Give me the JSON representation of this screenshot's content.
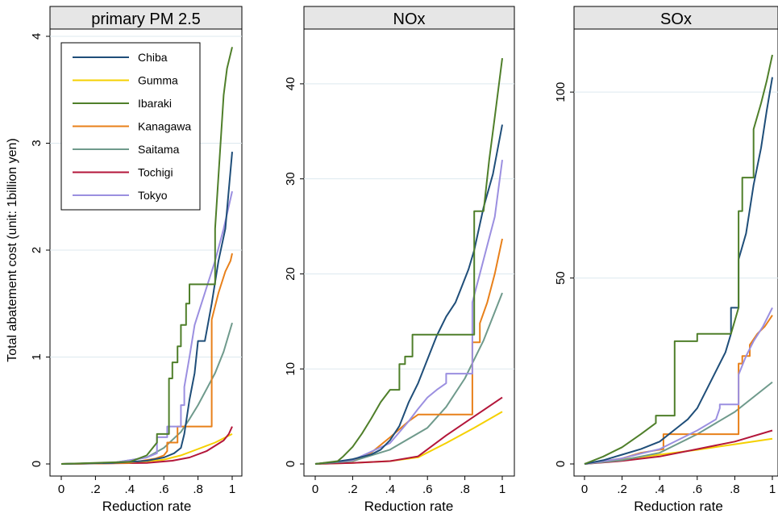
{
  "ylabel": "Total abatement cost (unit: 1billion yen)",
  "legend": {
    "placement": "top-left of first panel",
    "entries": [
      "Chiba",
      "Gumma",
      "Ibaraki",
      "Kanagawa",
      "Saitama",
      "Tochigi",
      "Tokyo"
    ]
  },
  "colors": {
    "Chiba": "#1f4e79",
    "Gumma": "#f5d000",
    "Ibaraki": "#4f7f2a",
    "Kanagawa": "#e8801a",
    "Saitama": "#6f9a8c",
    "Tochigi": "#b3163a",
    "Tokyo": "#9b8fe0",
    "panel_header": "#e6e6e6",
    "grid": "#dde9ef"
  },
  "chart_data": [
    {
      "type": "line",
      "title": "primary PM 2.5",
      "xlabel": "Reduction rate",
      "ylabel": "Total abatement cost (unit: 1billion yen)",
      "xlim": [
        0,
        1
      ],
      "ylim": [
        0,
        4
      ],
      "xticks": [
        "0",
        ".2",
        ".4",
        ".6",
        ".8",
        "1"
      ],
      "yticks": [
        "0",
        "1",
        "2",
        "3",
        "4"
      ],
      "series": [
        {
          "name": "Chiba",
          "x": [
            0,
            0.3,
            0.5,
            0.6,
            0.66,
            0.7,
            0.72,
            0.75,
            0.78,
            0.8,
            0.84,
            0.88,
            0.92,
            0.96,
            1.0
          ],
          "y": [
            0,
            0.01,
            0.03,
            0.06,
            0.1,
            0.15,
            0.28,
            0.6,
            0.85,
            1.15,
            1.15,
            1.5,
            1.9,
            2.2,
            2.92
          ]
        },
        {
          "name": "Gumma",
          "x": [
            0,
            0.4,
            0.6,
            0.7,
            0.8,
            0.9,
            1.0
          ],
          "y": [
            0,
            0.01,
            0.04,
            0.08,
            0.14,
            0.2,
            0.28
          ]
        },
        {
          "name": "Ibaraki",
          "x": [
            0,
            0.4,
            0.5,
            0.52,
            0.56,
            0.56,
            0.63,
            0.63,
            0.65,
            0.65,
            0.68,
            0.68,
            0.7,
            0.7,
            0.73,
            0.73,
            0.75,
            0.75,
            0.9,
            0.9,
            0.95,
            0.97,
            1.0
          ],
          "y": [
            0,
            0.02,
            0.08,
            0.12,
            0.2,
            0.28,
            0.28,
            0.8,
            0.8,
            0.95,
            0.95,
            1.1,
            1.1,
            1.3,
            1.3,
            1.5,
            1.5,
            1.68,
            1.68,
            2.2,
            3.45,
            3.7,
            3.9
          ]
        },
        {
          "name": "Kanagawa",
          "x": [
            0,
            0.4,
            0.55,
            0.6,
            0.62,
            0.62,
            0.68,
            0.68,
            0.88,
            0.88,
            0.92,
            0.96,
            0.99,
            1.0
          ],
          "y": [
            0,
            0.01,
            0.05,
            0.08,
            0.12,
            0.2,
            0.2,
            0.35,
            0.35,
            1.35,
            1.6,
            1.8,
            1.9,
            1.97
          ]
        },
        {
          "name": "Saitama",
          "x": [
            0,
            0.3,
            0.5,
            0.6,
            0.7,
            0.75,
            0.8,
            0.85,
            0.9,
            0.95,
            1.0
          ],
          "y": [
            0,
            0.01,
            0.06,
            0.15,
            0.3,
            0.42,
            0.55,
            0.7,
            0.85,
            1.05,
            1.32
          ]
        },
        {
          "name": "Tochigi",
          "x": [
            0,
            0.5,
            0.65,
            0.75,
            0.85,
            0.95,
            0.98,
            1.0
          ],
          "y": [
            0,
            0.01,
            0.03,
            0.06,
            0.12,
            0.22,
            0.28,
            0.35
          ]
        },
        {
          "name": "Tokyo",
          "x": [
            0,
            0.3,
            0.5,
            0.56,
            0.56,
            0.62,
            0.62,
            0.7,
            0.7,
            0.72,
            0.72,
            0.75,
            0.78,
            0.84,
            0.9,
            0.95,
            1.0
          ],
          "y": [
            0,
            0.01,
            0.06,
            0.1,
            0.25,
            0.25,
            0.35,
            0.35,
            0.55,
            0.55,
            0.72,
            1.0,
            1.3,
            1.6,
            1.9,
            2.2,
            2.55
          ]
        }
      ]
    },
    {
      "type": "line",
      "title": "NOx",
      "xlabel": "Reduction rate",
      "xlim": [
        0,
        1
      ],
      "ylim": [
        0,
        45
      ],
      "xticks": [
        "0",
        ".2",
        ".4",
        ".6",
        ".8",
        "1"
      ],
      "yticks": [
        "0",
        "10",
        "20",
        "30",
        "40"
      ],
      "series": [
        {
          "name": "Chiba",
          "x": [
            0,
            0.1,
            0.2,
            0.3,
            0.35,
            0.4,
            0.45,
            0.5,
            0.55,
            0.6,
            0.65,
            0.7,
            0.75,
            0.78,
            0.82,
            0.85,
            0.9,
            0.95,
            1.0
          ],
          "y": [
            0,
            0.2,
            0.5,
            1.0,
            1.5,
            2.5,
            4.0,
            6.5,
            8.5,
            11.0,
            13.5,
            15.5,
            17.0,
            18.5,
            20.5,
            22.5,
            27.0,
            30.5,
            35.7
          ]
        },
        {
          "name": "Gumma",
          "x": [
            0,
            0.2,
            0.4,
            0.55,
            0.7,
            0.85,
            1.0
          ],
          "y": [
            0,
            0.1,
            0.3,
            0.7,
            2.2,
            3.8,
            5.5
          ]
        },
        {
          "name": "Ibaraki",
          "x": [
            0,
            0.12,
            0.15,
            0.2,
            0.25,
            0.3,
            0.35,
            0.4,
            0.45,
            0.45,
            0.48,
            0.48,
            0.52,
            0.52,
            0.85,
            0.85,
            0.9,
            0.93,
            0.96,
            1.0
          ],
          "y": [
            0,
            0.3,
            0.8,
            1.8,
            3.2,
            4.8,
            6.5,
            7.8,
            7.8,
            10.5,
            10.5,
            11.3,
            11.3,
            13.6,
            13.6,
            26.6,
            26.6,
            32.0,
            36.5,
            42.7
          ]
        },
        {
          "name": "Kanagawa",
          "x": [
            0,
            0.2,
            0.3,
            0.4,
            0.5,
            0.55,
            0.84,
            0.84,
            0.88,
            0.88,
            0.92,
            0.96,
            1.0
          ],
          "y": [
            0,
            0.4,
            1.2,
            2.8,
            4.5,
            5.2,
            5.2,
            12.8,
            12.8,
            14.8,
            17.0,
            20.0,
            23.7
          ]
        },
        {
          "name": "Saitama",
          "x": [
            0,
            0.2,
            0.4,
            0.6,
            0.7,
            0.8,
            0.9,
            1.0
          ],
          "y": [
            0,
            0.3,
            1.5,
            3.8,
            6.0,
            9.0,
            13.0,
            18.0
          ]
        },
        {
          "name": "Tochigi",
          "x": [
            0,
            0.2,
            0.4,
            0.55,
            0.7,
            0.85,
            1.0
          ],
          "y": [
            0,
            0.1,
            0.3,
            0.8,
            3.0,
            5.0,
            7.0
          ]
        },
        {
          "name": "Tokyo",
          "x": [
            0,
            0.2,
            0.4,
            0.5,
            0.55,
            0.6,
            0.65,
            0.7,
            0.7,
            0.84,
            0.84,
            0.88,
            0.92,
            0.96,
            1.0
          ],
          "y": [
            0,
            0.4,
            2.2,
            4.5,
            5.8,
            7.0,
            7.8,
            8.5,
            9.5,
            9.5,
            17.0,
            20.0,
            23.0,
            26.0,
            32.0
          ]
        }
      ]
    },
    {
      "type": "line",
      "title": "SOx",
      "xlabel": "Reduction rate",
      "xlim": [
        0,
        1
      ],
      "ylim": [
        0,
        115
      ],
      "xticks": [
        "0",
        ".2",
        ".4",
        ".6",
        ".8",
        "1"
      ],
      "yticks": [
        "0",
        "50",
        "100"
      ],
      "series": [
        {
          "name": "Chiba",
          "x": [
            0,
            0.1,
            0.2,
            0.3,
            0.4,
            0.5,
            0.55,
            0.6,
            0.65,
            0.7,
            0.75,
            0.78,
            0.78,
            0.82,
            0.82,
            0.86,
            0.9,
            0.94,
            0.97,
            1.0
          ],
          "y": [
            0,
            1,
            2.5,
            4,
            6,
            10,
            12,
            15,
            20,
            25,
            30,
            35,
            42,
            42,
            55,
            62,
            75,
            85,
            95,
            104
          ]
        },
        {
          "name": "Gumma",
          "x": [
            0,
            0.2,
            0.4,
            0.6,
            0.8,
            1.0
          ],
          "y": [
            0,
            1.2,
            2.5,
            3.8,
            5.3,
            6.8
          ]
        },
        {
          "name": "Ibaraki",
          "x": [
            0,
            0.1,
            0.2,
            0.3,
            0.38,
            0.38,
            0.48,
            0.48,
            0.6,
            0.6,
            0.78,
            0.82,
            0.82,
            0.84,
            0.84,
            0.9,
            0.9,
            0.94,
            0.97,
            1.0
          ],
          "y": [
            0,
            2,
            4.5,
            8,
            11,
            13,
            13,
            33,
            33,
            35,
            35,
            42,
            68,
            68,
            77,
            77,
            90,
            97,
            103,
            110
          ]
        },
        {
          "name": "Kanagawa",
          "x": [
            0,
            0.2,
            0.3,
            0.42,
            0.42,
            0.82,
            0.82,
            0.84,
            0.84,
            0.88,
            0.88,
            0.92,
            0.96,
            1.0
          ],
          "y": [
            0,
            1.5,
            3,
            4,
            8,
            8,
            27,
            27,
            29,
            29,
            32,
            35,
            37,
            40
          ]
        },
        {
          "name": "Saitama",
          "x": [
            0,
            0.2,
            0.4,
            0.6,
            0.8,
            1.0
          ],
          "y": [
            0,
            1,
            3,
            8,
            14,
            22
          ]
        },
        {
          "name": "Tochigi",
          "x": [
            0,
            0.2,
            0.4,
            0.6,
            0.8,
            1.0
          ],
          "y": [
            0,
            0.8,
            2,
            4,
            6,
            9
          ]
        },
        {
          "name": "Tokyo",
          "x": [
            0,
            0.2,
            0.3,
            0.4,
            0.6,
            0.7,
            0.72,
            0.72,
            0.82,
            0.82,
            0.86,
            0.9,
            0.95,
            1.0
          ],
          "y": [
            0,
            1.5,
            2.8,
            4,
            9,
            12,
            15,
            16,
            16,
            24,
            29,
            33,
            37,
            42
          ]
        }
      ]
    }
  ]
}
